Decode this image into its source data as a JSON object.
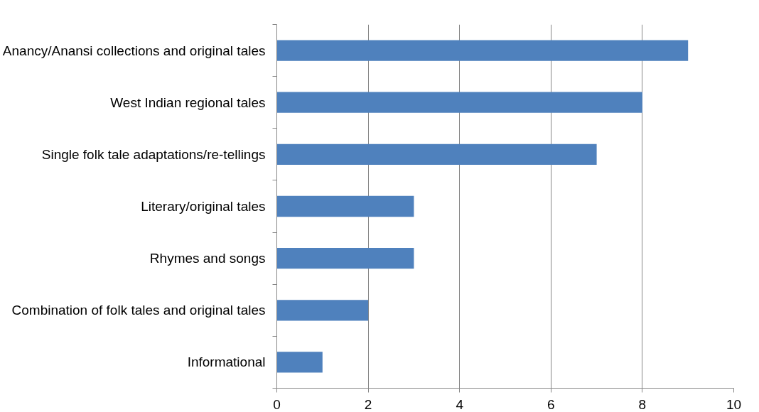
{
  "chart_data": {
    "type": "bar",
    "orientation": "horizontal",
    "categories": [
      "Anancy/Anansi collections and original tales",
      "West Indian regional tales",
      "Single folk tale adaptations/re-tellings",
      "Literary/original tales",
      "Rhymes and songs",
      "Combination of folk tales and original tales",
      "Informational"
    ],
    "values": [
      9,
      8,
      7,
      3,
      3,
      2,
      1
    ],
    "color": "#4f81bd",
    "xlim": [
      0,
      10
    ],
    "xticks": [
      0,
      2,
      4,
      6,
      8,
      10
    ],
    "grid": "x"
  }
}
